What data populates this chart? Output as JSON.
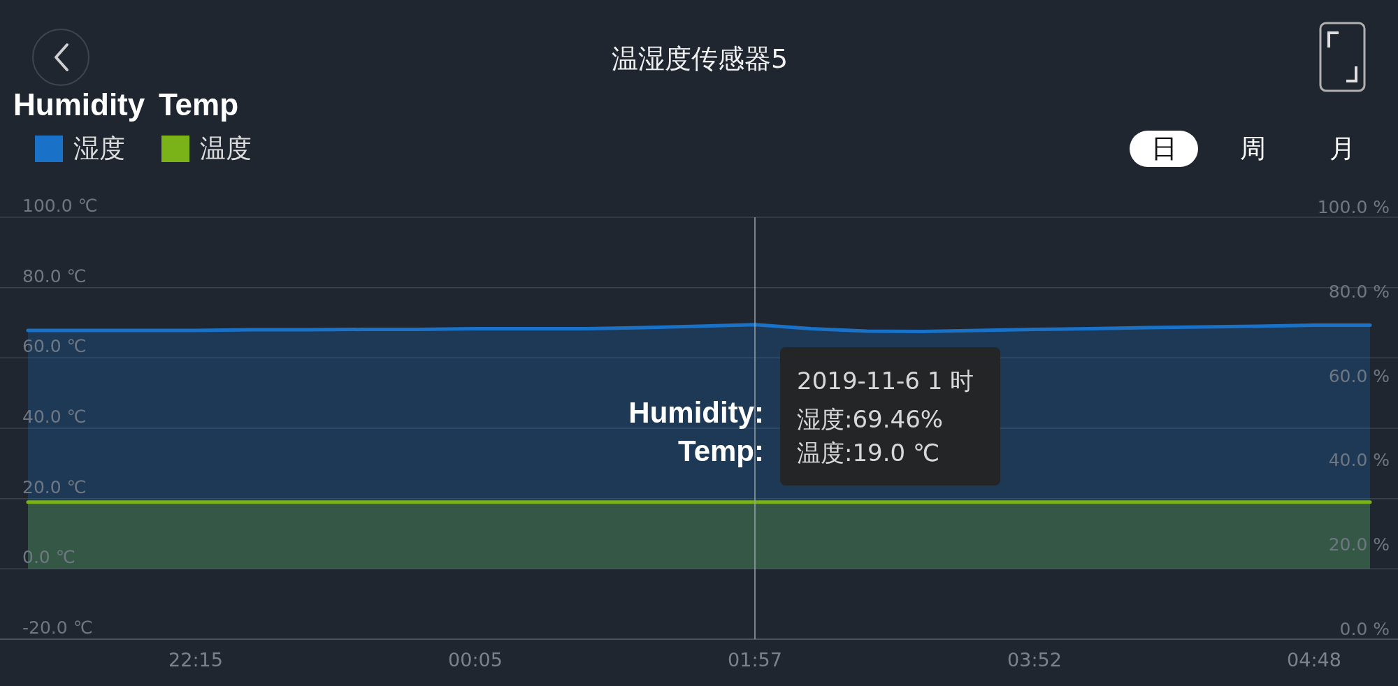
{
  "chart_data": {
    "type": "area",
    "title": "温湿度传感器5",
    "categories": [
      null,
      null,
      null,
      "22:15",
      null,
      null,
      null,
      null,
      "00:05",
      null,
      null,
      null,
      null,
      "01:57",
      null,
      null,
      null,
      null,
      "03:52",
      null,
      null,
      null,
      null,
      "04:48",
      null
    ],
    "series": [
      {
        "name": "湿度",
        "color": "#1a72c8",
        "values": [
          67.8,
          67.8,
          67.8,
          67.8,
          68.0,
          68.0,
          68.1,
          68.1,
          68.3,
          68.3,
          68.3,
          68.6,
          69.0,
          69.46,
          68.3,
          67.6,
          67.5,
          67.8,
          68.1,
          68.3,
          68.6,
          68.8,
          69.0,
          69.3,
          69.3
        ]
      },
      {
        "name": "温度",
        "color": "#7ab317",
        "values": [
          19.0,
          19.0,
          19.0,
          19.0,
          19.0,
          19.0,
          19.0,
          19.0,
          19.0,
          19.0,
          19.0,
          19.0,
          19.0,
          19.0,
          19.0,
          19.0,
          19.0,
          19.0,
          19.0,
          19.0,
          19.0,
          19.0,
          19.0,
          19.0,
          19.0
        ]
      }
    ],
    "ylim": [
      -20,
      100
    ],
    "yticks": [
      {
        "value": -20,
        "label": "-20.0 ℃"
      },
      {
        "value": 0,
        "label": "0.0 ℃"
      },
      {
        "value": 20,
        "label": "20.0 ℃"
      },
      {
        "value": 40,
        "label": "40.0 ℃"
      },
      {
        "value": 60,
        "label": "60.0 ℃"
      },
      {
        "value": 80,
        "label": "80.0 ℃"
      },
      {
        "value": 100,
        "label": "100.0 ℃"
      }
    ],
    "y2lim": [
      0,
      100
    ],
    "y2ticks": [
      {
        "value": 0,
        "label": "0.0 %"
      },
      {
        "value": 20,
        "label": "20.0 %"
      },
      {
        "value": 40,
        "label": "40.0 %"
      },
      {
        "value": 60,
        "label": "60.0 %"
      },
      {
        "value": 80,
        "label": "80.0 %"
      },
      {
        "value": 100,
        "label": "100.0 %"
      }
    ],
    "grid": "y",
    "legend": "top left",
    "ref_lines": [
      {
        "axis": "x",
        "value": "01:57",
        "color": "#9aa0a6"
      }
    ],
    "annotations": [
      "Humidity",
      "Temp",
      "日",
      "周",
      "月",
      "2019-11-6 1 时",
      "湿度:69.46%",
      "温度:19.0 ℃",
      "Humidity:",
      "Temp:"
    ]
  }
}
